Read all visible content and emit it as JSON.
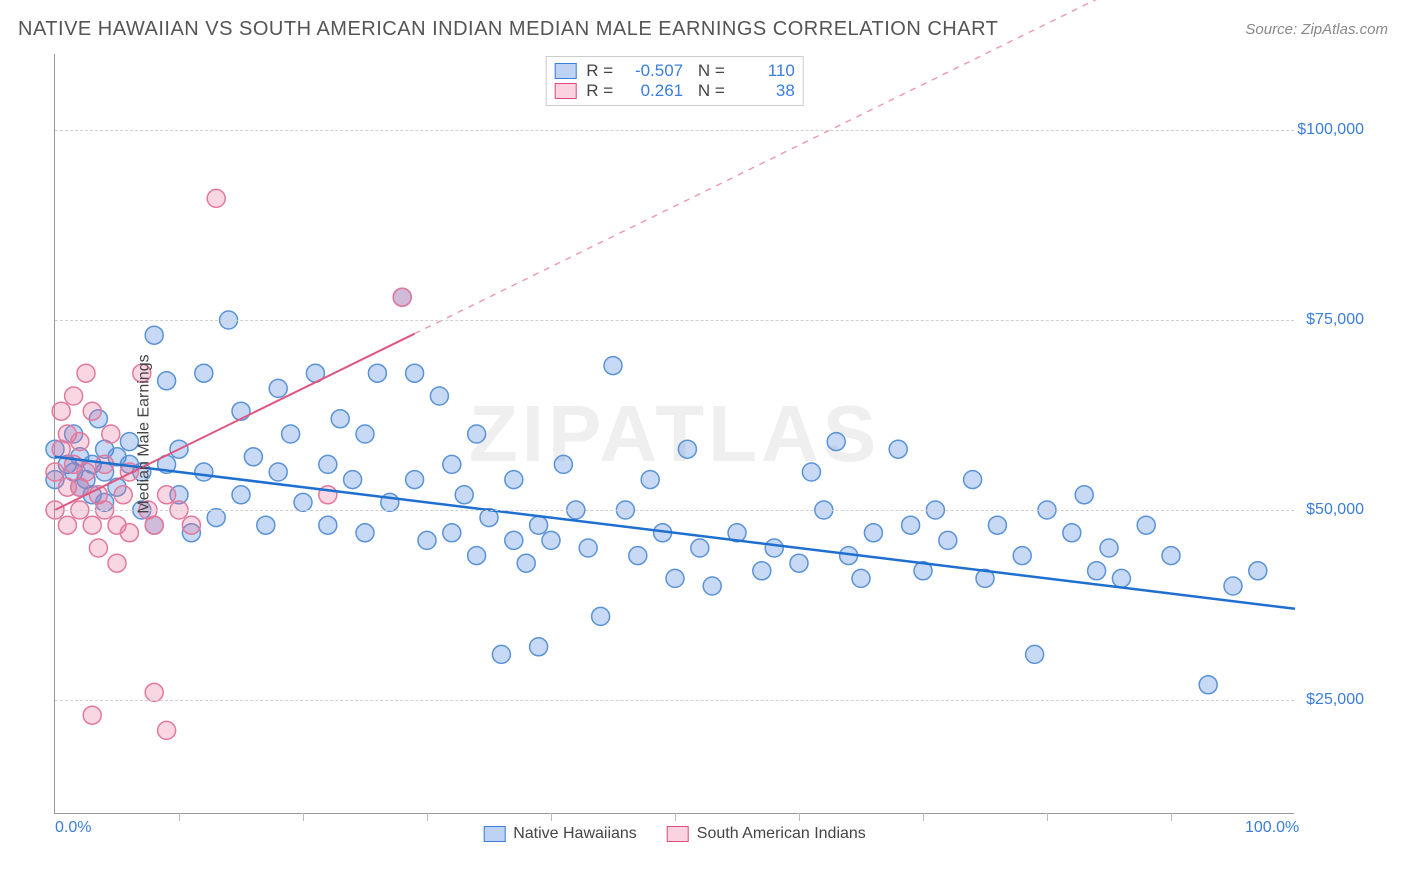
{
  "title": "NATIVE HAWAIIAN VS SOUTH AMERICAN INDIAN MEDIAN MALE EARNINGS CORRELATION CHART",
  "source_prefix": "Source: ",
  "source": "ZipAtlas.com",
  "watermark": "ZIPATLAS",
  "chart": {
    "type": "scatter",
    "ylabel": "Median Male Earnings",
    "background_color": "#ffffff",
    "grid_color": "#d0d0d0",
    "axis_color": "#999999",
    "label_color": "#444444",
    "tick_label_color": "#3b7dd8",
    "title_fontsize": 20,
    "label_fontsize": 16,
    "tick_fontsize": 16,
    "marker_radius": 9,
    "marker_stroke_width": 1.5,
    "xlim": [
      0,
      100
    ],
    "ylim": [
      10000,
      110000
    ],
    "xticks": [
      0,
      100
    ],
    "xtick_labels": [
      "0.0%",
      "100.0%"
    ],
    "xtick_minor": [
      10,
      20,
      30,
      40,
      50,
      60,
      70,
      80,
      90
    ],
    "yticks": [
      25000,
      50000,
      75000,
      100000
    ],
    "ytick_labels": [
      "$25,000",
      "$50,000",
      "$75,000",
      "$100,000"
    ],
    "series": [
      {
        "name": "Native Hawaiians",
        "color_fill": "rgba(70,130,220,0.30)",
        "color_stroke": "#5a93d6",
        "line_color": "#1f6fd0",
        "line_width": 2.5,
        "R": "-0.507",
        "N": "110",
        "regression": {
          "x1": 0,
          "y1": 57000,
          "x2": 100,
          "y2": 37000,
          "solid_until_x": 100
        },
        "points": [
          [
            0,
            54000
          ],
          [
            0,
            58000
          ],
          [
            1,
            56000
          ],
          [
            1.5,
            55000
          ],
          [
            1.5,
            60000
          ],
          [
            2,
            57000
          ],
          [
            2,
            53000
          ],
          [
            2.5,
            54000
          ],
          [
            3,
            52000
          ],
          [
            3,
            56000
          ],
          [
            3.5,
            62000
          ],
          [
            4,
            58000
          ],
          [
            4,
            55000
          ],
          [
            4,
            51000
          ],
          [
            5,
            57000
          ],
          [
            5,
            53000
          ],
          [
            6,
            59000
          ],
          [
            6,
            56000
          ],
          [
            7,
            50000
          ],
          [
            7,
            55000
          ],
          [
            8,
            48000
          ],
          [
            8,
            73000
          ],
          [
            9,
            67000
          ],
          [
            9,
            56000
          ],
          [
            10,
            58000
          ],
          [
            10,
            52000
          ],
          [
            11,
            47000
          ],
          [
            12,
            68000
          ],
          [
            12,
            55000
          ],
          [
            13,
            49000
          ],
          [
            14,
            75000
          ],
          [
            15,
            63000
          ],
          [
            15,
            52000
          ],
          [
            16,
            57000
          ],
          [
            17,
            48000
          ],
          [
            18,
            66000
          ],
          [
            18,
            55000
          ],
          [
            19,
            60000
          ],
          [
            20,
            51000
          ],
          [
            21,
            68000
          ],
          [
            22,
            56000
          ],
          [
            22,
            48000
          ],
          [
            23,
            62000
          ],
          [
            24,
            54000
          ],
          [
            25,
            60000
          ],
          [
            25,
            47000
          ],
          [
            26,
            68000
          ],
          [
            27,
            51000
          ],
          [
            28,
            78000
          ],
          [
            29,
            54000
          ],
          [
            29,
            68000
          ],
          [
            30,
            46000
          ],
          [
            31,
            65000
          ],
          [
            32,
            56000
          ],
          [
            32,
            47000
          ],
          [
            33,
            52000
          ],
          [
            34,
            44000
          ],
          [
            34,
            60000
          ],
          [
            35,
            49000
          ],
          [
            36,
            31000
          ],
          [
            37,
            54000
          ],
          [
            37,
            46000
          ],
          [
            38,
            43000
          ],
          [
            39,
            48000
          ],
          [
            39,
            32000
          ],
          [
            40,
            46000
          ],
          [
            41,
            56000
          ],
          [
            42,
            50000
          ],
          [
            43,
            45000
          ],
          [
            44,
            36000
          ],
          [
            45,
            69000
          ],
          [
            46,
            50000
          ],
          [
            47,
            44000
          ],
          [
            48,
            54000
          ],
          [
            49,
            47000
          ],
          [
            50,
            41000
          ],
          [
            51,
            58000
          ],
          [
            52,
            45000
          ],
          [
            53,
            40000
          ],
          [
            55,
            47000
          ],
          [
            57,
            42000
          ],
          [
            58,
            45000
          ],
          [
            60,
            43000
          ],
          [
            61,
            55000
          ],
          [
            62,
            50000
          ],
          [
            63,
            59000
          ],
          [
            64,
            44000
          ],
          [
            65,
            41000
          ],
          [
            66,
            47000
          ],
          [
            68,
            58000
          ],
          [
            69,
            48000
          ],
          [
            70,
            42000
          ],
          [
            71,
            50000
          ],
          [
            72,
            46000
          ],
          [
            74,
            54000
          ],
          [
            75,
            41000
          ],
          [
            76,
            48000
          ],
          [
            78,
            44000
          ],
          [
            79,
            31000
          ],
          [
            80,
            50000
          ],
          [
            82,
            47000
          ],
          [
            83,
            52000
          ],
          [
            84,
            42000
          ],
          [
            85,
            45000
          ],
          [
            86,
            41000
          ],
          [
            88,
            48000
          ],
          [
            90,
            44000
          ],
          [
            93,
            27000
          ],
          [
            95,
            40000
          ],
          [
            97,
            42000
          ]
        ]
      },
      {
        "name": "South American Indians",
        "color_fill": "rgba(235,110,150,0.28)",
        "color_stroke": "#e2799c",
        "line_color": "#e0557f",
        "line_width": 2,
        "R": "0.261",
        "N": "38",
        "regression": {
          "x1": 0,
          "y1": 50000,
          "x2": 100,
          "y2": 130000,
          "solid_until_x": 29
        },
        "points": [
          [
            0,
            55000
          ],
          [
            0,
            50000
          ],
          [
            0.5,
            58000
          ],
          [
            0.5,
            63000
          ],
          [
            1,
            53000
          ],
          [
            1,
            48000
          ],
          [
            1,
            60000
          ],
          [
            1.5,
            65000
          ],
          [
            1.5,
            56000
          ],
          [
            2,
            53000
          ],
          [
            2,
            50000
          ],
          [
            2,
            59000
          ],
          [
            2.5,
            68000
          ],
          [
            2.5,
            55000
          ],
          [
            3,
            48000
          ],
          [
            3,
            63000
          ],
          [
            3,
            23000
          ],
          [
            3.5,
            45000
          ],
          [
            3.5,
            52000
          ],
          [
            4,
            56000
          ],
          [
            4,
            50000
          ],
          [
            4.5,
            60000
          ],
          [
            5,
            48000
          ],
          [
            5,
            43000
          ],
          [
            5.5,
            52000
          ],
          [
            6,
            47000
          ],
          [
            6,
            55000
          ],
          [
            7,
            68000
          ],
          [
            7.5,
            50000
          ],
          [
            8,
            26000
          ],
          [
            8,
            48000
          ],
          [
            9,
            52000
          ],
          [
            9,
            21000
          ],
          [
            10,
            50000
          ],
          [
            11,
            48000
          ],
          [
            13,
            91000
          ],
          [
            22,
            52000
          ],
          [
            28,
            78000
          ]
        ]
      }
    ],
    "legend_bottom": [
      {
        "swatch": "sw-blue",
        "label": "Native Hawaiians"
      },
      {
        "swatch": "sw-pink",
        "label": "South American Indians"
      }
    ]
  }
}
